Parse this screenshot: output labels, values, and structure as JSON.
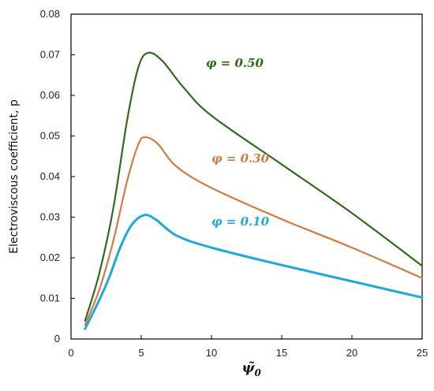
{
  "chart_data": {
    "type": "line",
    "xlabel": "ψ̃",
    "xlabel_subscript": "0",
    "ylabel": "Electroviscous coefficient, p",
    "xlim": [
      0,
      25
    ],
    "ylim": [
      0,
      0.08
    ],
    "xticks": [
      0,
      5,
      10,
      15,
      20,
      25
    ],
    "yticks": [
      0,
      0.01,
      0.02,
      0.03,
      0.04,
      0.05,
      0.06,
      0.07,
      0.08
    ],
    "ytick_labels": [
      "0",
      "0.01",
      "0.02",
      "0.03",
      "0.04",
      "0.05",
      "0.06",
      "0.07",
      "0.08"
    ],
    "xtick_labels": [
      "0",
      "5",
      "10",
      "15",
      "20",
      "25"
    ],
    "grid": false,
    "legend": "none (inline labels)",
    "series": [
      {
        "name": "φ = 0.50",
        "color": "#2e6b1e",
        "x": [
          1.0,
          2.0,
          3.0,
          4.0,
          4.8,
          5.5,
          6.5,
          8.0,
          10.0,
          15.0,
          20.0,
          25.0
        ],
        "y": [
          0.0045,
          0.016,
          0.032,
          0.054,
          0.067,
          0.0705,
          0.0685,
          0.062,
          0.055,
          0.043,
          0.031,
          0.018
        ]
      },
      {
        "name": "φ = 0.30",
        "color": "#d07a45",
        "x": [
          1.0,
          2.0,
          3.0,
          4.0,
          4.8,
          5.3,
          6.2,
          7.5,
          10.0,
          15.0,
          20.0,
          25.0
        ],
        "y": [
          0.0035,
          0.012,
          0.024,
          0.039,
          0.048,
          0.0497,
          0.048,
          0.0425,
          0.0372,
          0.0295,
          0.0225,
          0.015
        ]
      },
      {
        "name": "φ = 0.10",
        "color": "#1fa9d8",
        "x": [
          1.0,
          2.0,
          2.7,
          3.5,
          4.3,
          5.2,
          6.0,
          7.5,
          10.0,
          15.0,
          20.0,
          25.0
        ],
        "y": [
          0.0025,
          0.0095,
          0.015,
          0.0225,
          0.028,
          0.0305,
          0.0295,
          0.0255,
          0.0225,
          0.0182,
          0.0142,
          0.0102
        ]
      }
    ],
    "annotations": [
      {
        "text": "φ = 0.50",
        "x": 9.6,
        "y": 0.067,
        "color": "#2e6b1e"
      },
      {
        "text": "φ = 0.30",
        "x": 10.0,
        "y": 0.0435,
        "color": "#d07a45"
      },
      {
        "text": "φ = 0.10",
        "x": 10.0,
        "y": 0.028,
        "color": "#1fa9d8"
      }
    ]
  }
}
